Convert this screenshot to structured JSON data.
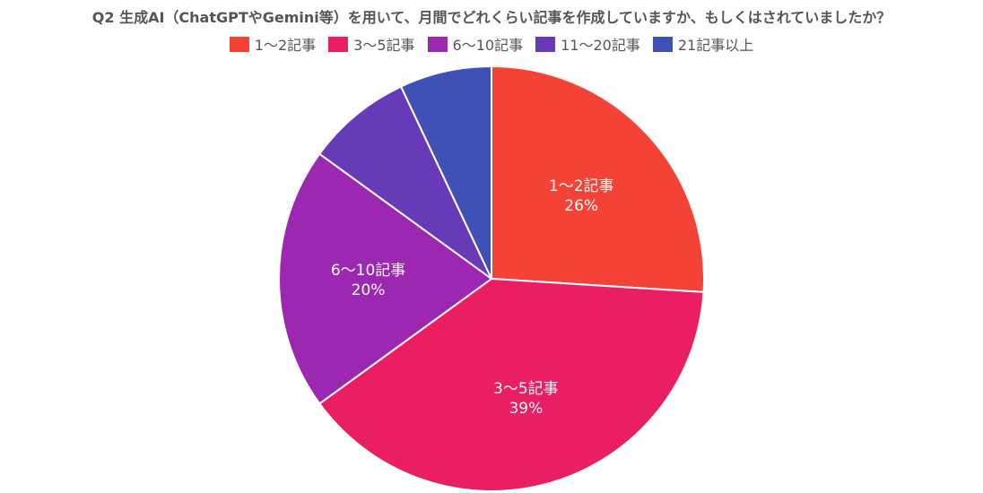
{
  "chart_data": {
    "type": "pie",
    "title": "Q2 生成AI（ChatGPTやGemini等）を用いて、月間でどれくらい記事を作成していますか、もしくはされていましたか？",
    "categories": [
      "1〜2記事",
      "3〜5記事",
      "6〜10記事",
      "11〜20記事",
      "21記事以上"
    ],
    "values": [
      26,
      39,
      20,
      8,
      7
    ],
    "value_labels": [
      "26%",
      "39%",
      "20%",
      "",
      ""
    ],
    "colors": [
      "#F44336",
      "#E91E63",
      "#9C27B0",
      "#673AB7",
      "#3F51B5"
    ],
    "start_angle_deg": 0,
    "direction": "clockwise",
    "legend_position": "top"
  }
}
